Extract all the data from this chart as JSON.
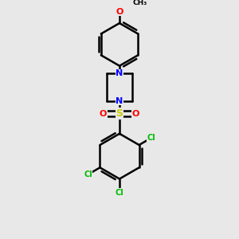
{
  "background_color": "#e8e8e8",
  "bond_color": "#000000",
  "bond_width": 1.8,
  "atom_colors": {
    "N": "#0000ff",
    "O": "#ff0000",
    "S": "#cccc00",
    "Cl": "#00bb00",
    "C": "#000000"
  },
  "font_size_atom": 8,
  "fig_size": [
    3.0,
    3.0
  ],
  "dpi": 100,
  "xlim": [
    -2.5,
    2.5
  ],
  "ylim": [
    -4.5,
    4.5
  ]
}
